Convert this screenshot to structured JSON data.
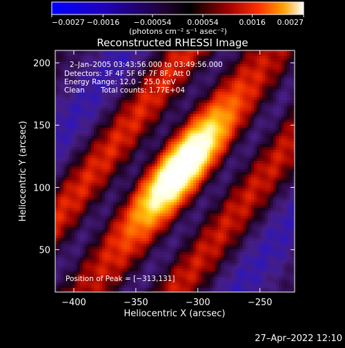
{
  "chart_data": {
    "type": "heatmap",
    "title": "Reconstructed RHESSI Image",
    "xlabel": "Heliocentric X (arcsec)",
    "ylabel": "Heliocentric Y (arcsec)",
    "xlim": [
      -415,
      -222
    ],
    "ylim": [
      16,
      210
    ],
    "xticks": [
      -400,
      -350,
      -300,
      -250
    ],
    "xtick_labels": [
      "−400",
      "−350",
      "−300",
      "−250"
    ],
    "yticks": [
      50,
      100,
      150,
      200
    ],
    "ytick_labels": [
      "50",
      "100",
      "150",
      "200"
    ],
    "colorbar": {
      "range": [
        -0.0027,
        0.0027
      ],
      "ticks": [
        -0.0027,
        -0.0016,
        -0.00054,
        0.00054,
        0.0016,
        0.0027
      ],
      "tick_labels": [
        "−0.0027",
        "−0.0016",
        "−0.00054",
        "0.00054",
        "0.0016",
        "0.0027"
      ],
      "unit_label": "(photons cm⁻² s⁻¹ asec⁻²)"
    },
    "annotations": {
      "time_range": "2–Jan–2005 03:43:56.000 to 03:49:56.000",
      "detectors": "Detectors: 3F 4F 5F 6F 7F 8F, Att 0",
      "energy": "Energy Range: 12.0 – 25.0 keV",
      "clean_method": "Clean",
      "total_counts": "Total counts: 1.77E+04",
      "peak": "Position of Peak = [−313,131]"
    },
    "peak": {
      "x": -313,
      "y": 131,
      "value": 0.0027
    },
    "colors": {
      "low": "#1010ff",
      "mid": "#300060",
      "high": "#ff2000",
      "peak": "#ffffff"
    }
  },
  "footer": {
    "timestamp": "27–Apr–2022 12:10"
  }
}
